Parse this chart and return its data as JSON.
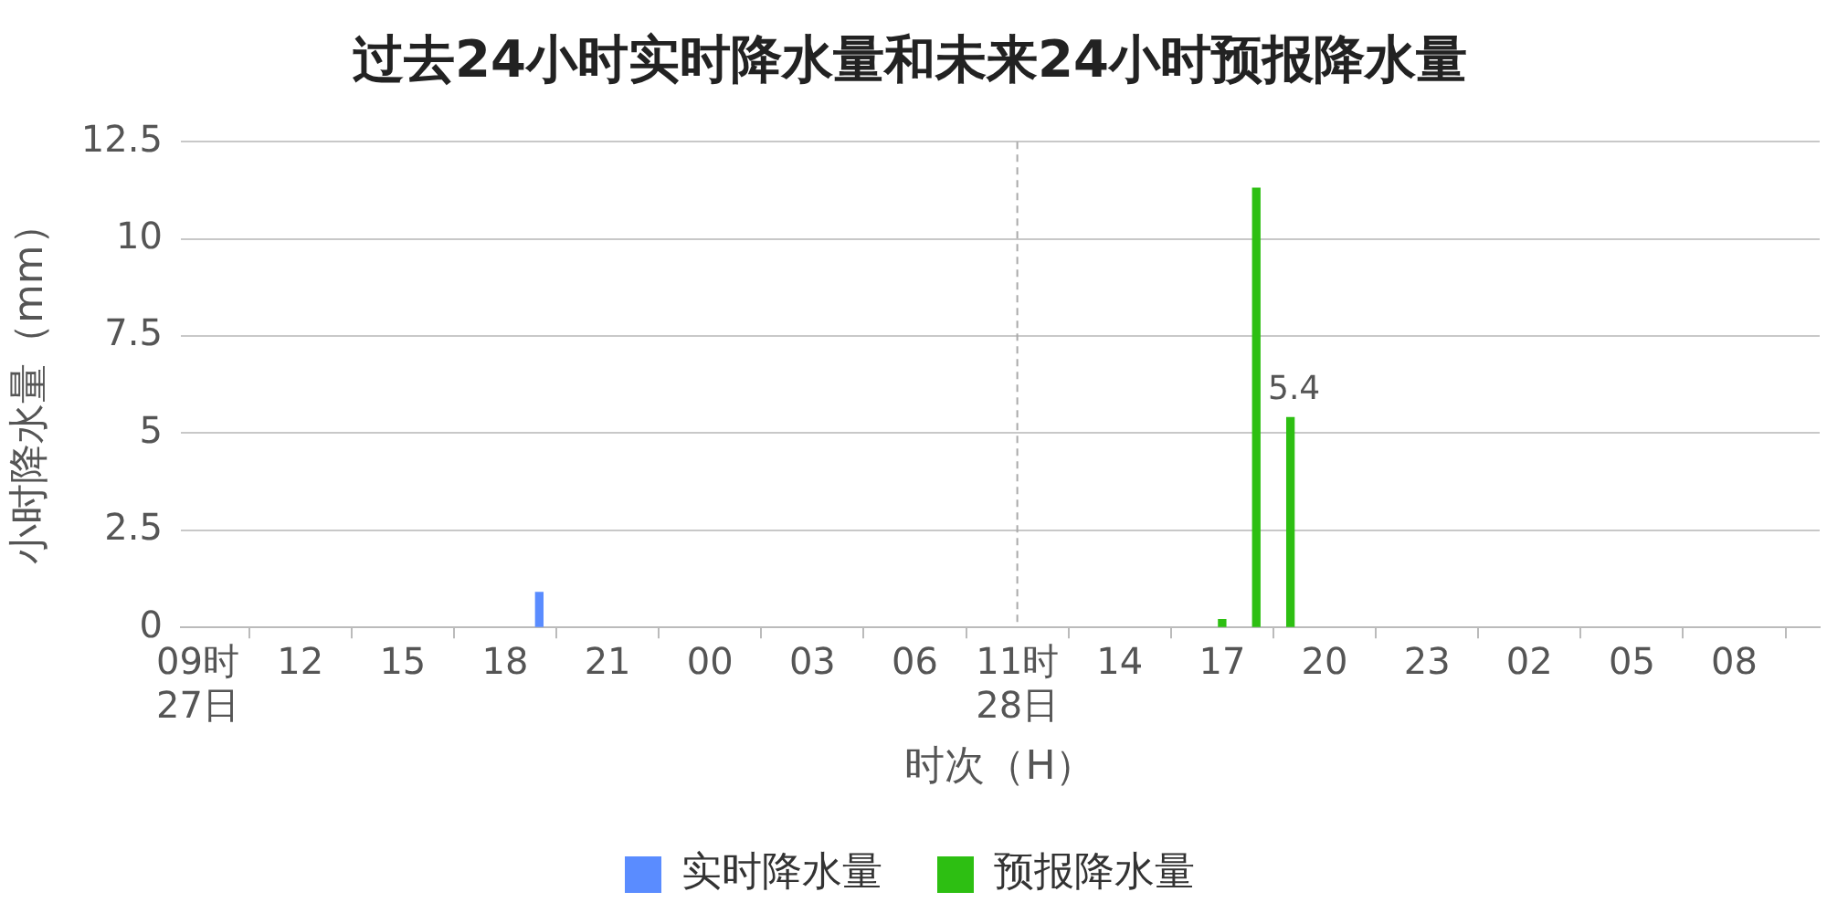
{
  "chart_data": {
    "type": "bar",
    "title": "过去24小时实时降水量和未来24小时预报降水量",
    "xlabel": "时次（H）",
    "ylabel": "小时降水量（mm）",
    "categories": [
      "09时\n27日",
      null,
      null,
      "12",
      null,
      null,
      "15",
      null,
      null,
      "18",
      null,
      null,
      "21",
      null,
      null,
      "00",
      null,
      null,
      "03",
      null,
      null,
      "06",
      null,
      null,
      "11时\n28日",
      null,
      null,
      "14",
      null,
      null,
      "17",
      null,
      null,
      "20",
      null,
      null,
      "23",
      null,
      null,
      "02",
      null,
      null,
      "05",
      null,
      null,
      "08",
      null,
      null
    ],
    "series": [
      {
        "name": "实时降水量",
        "color": "#5a8cff",
        "values": [
          null,
          null,
          null,
          null,
          null,
          null,
          null,
          null,
          null,
          null,
          0.9,
          null,
          null,
          null,
          null,
          null,
          null,
          null,
          null,
          null,
          null,
          null,
          null,
          null,
          null,
          null,
          null,
          null,
          null,
          null,
          null,
          null,
          null,
          null,
          null,
          null,
          null,
          null,
          null,
          null,
          null,
          null,
          null,
          null,
          null,
          null,
          null,
          null
        ]
      },
      {
        "name": "预报降水量",
        "color": "#2dbf12",
        "values": [
          null,
          null,
          null,
          null,
          null,
          null,
          null,
          null,
          null,
          null,
          null,
          null,
          null,
          null,
          null,
          null,
          null,
          null,
          null,
          null,
          null,
          null,
          null,
          null,
          null,
          null,
          null,
          null,
          null,
          null,
          0.2,
          11.3,
          5.4,
          null,
          null,
          null,
          null,
          null,
          null,
          null,
          null,
          null,
          null,
          null,
          null,
          null,
          null,
          null
        ],
        "value_labels": [
          null,
          null,
          null,
          null,
          null,
          null,
          null,
          null,
          null,
          null,
          null,
          null,
          null,
          null,
          null,
          null,
          null,
          null,
          null,
          null,
          null,
          null,
          null,
          null,
          null,
          null,
          null,
          null,
          null,
          null,
          null,
          null,
          "5.4",
          null,
          null,
          null,
          null,
          null,
          null,
          null,
          null,
          null,
          null,
          null,
          null,
          null,
          null,
          null
        ]
      }
    ],
    "ylim": [
      0,
      12.5
    ],
    "yticks": [
      0,
      2.5,
      5,
      7.5,
      10,
      12.5
    ],
    "grid": "y",
    "legend": "bottom",
    "ref_lines": [
      {
        "axis": "x",
        "value": "11时\n28日",
        "color": "#aaaaaa",
        "line_style": "dashed"
      }
    ]
  }
}
